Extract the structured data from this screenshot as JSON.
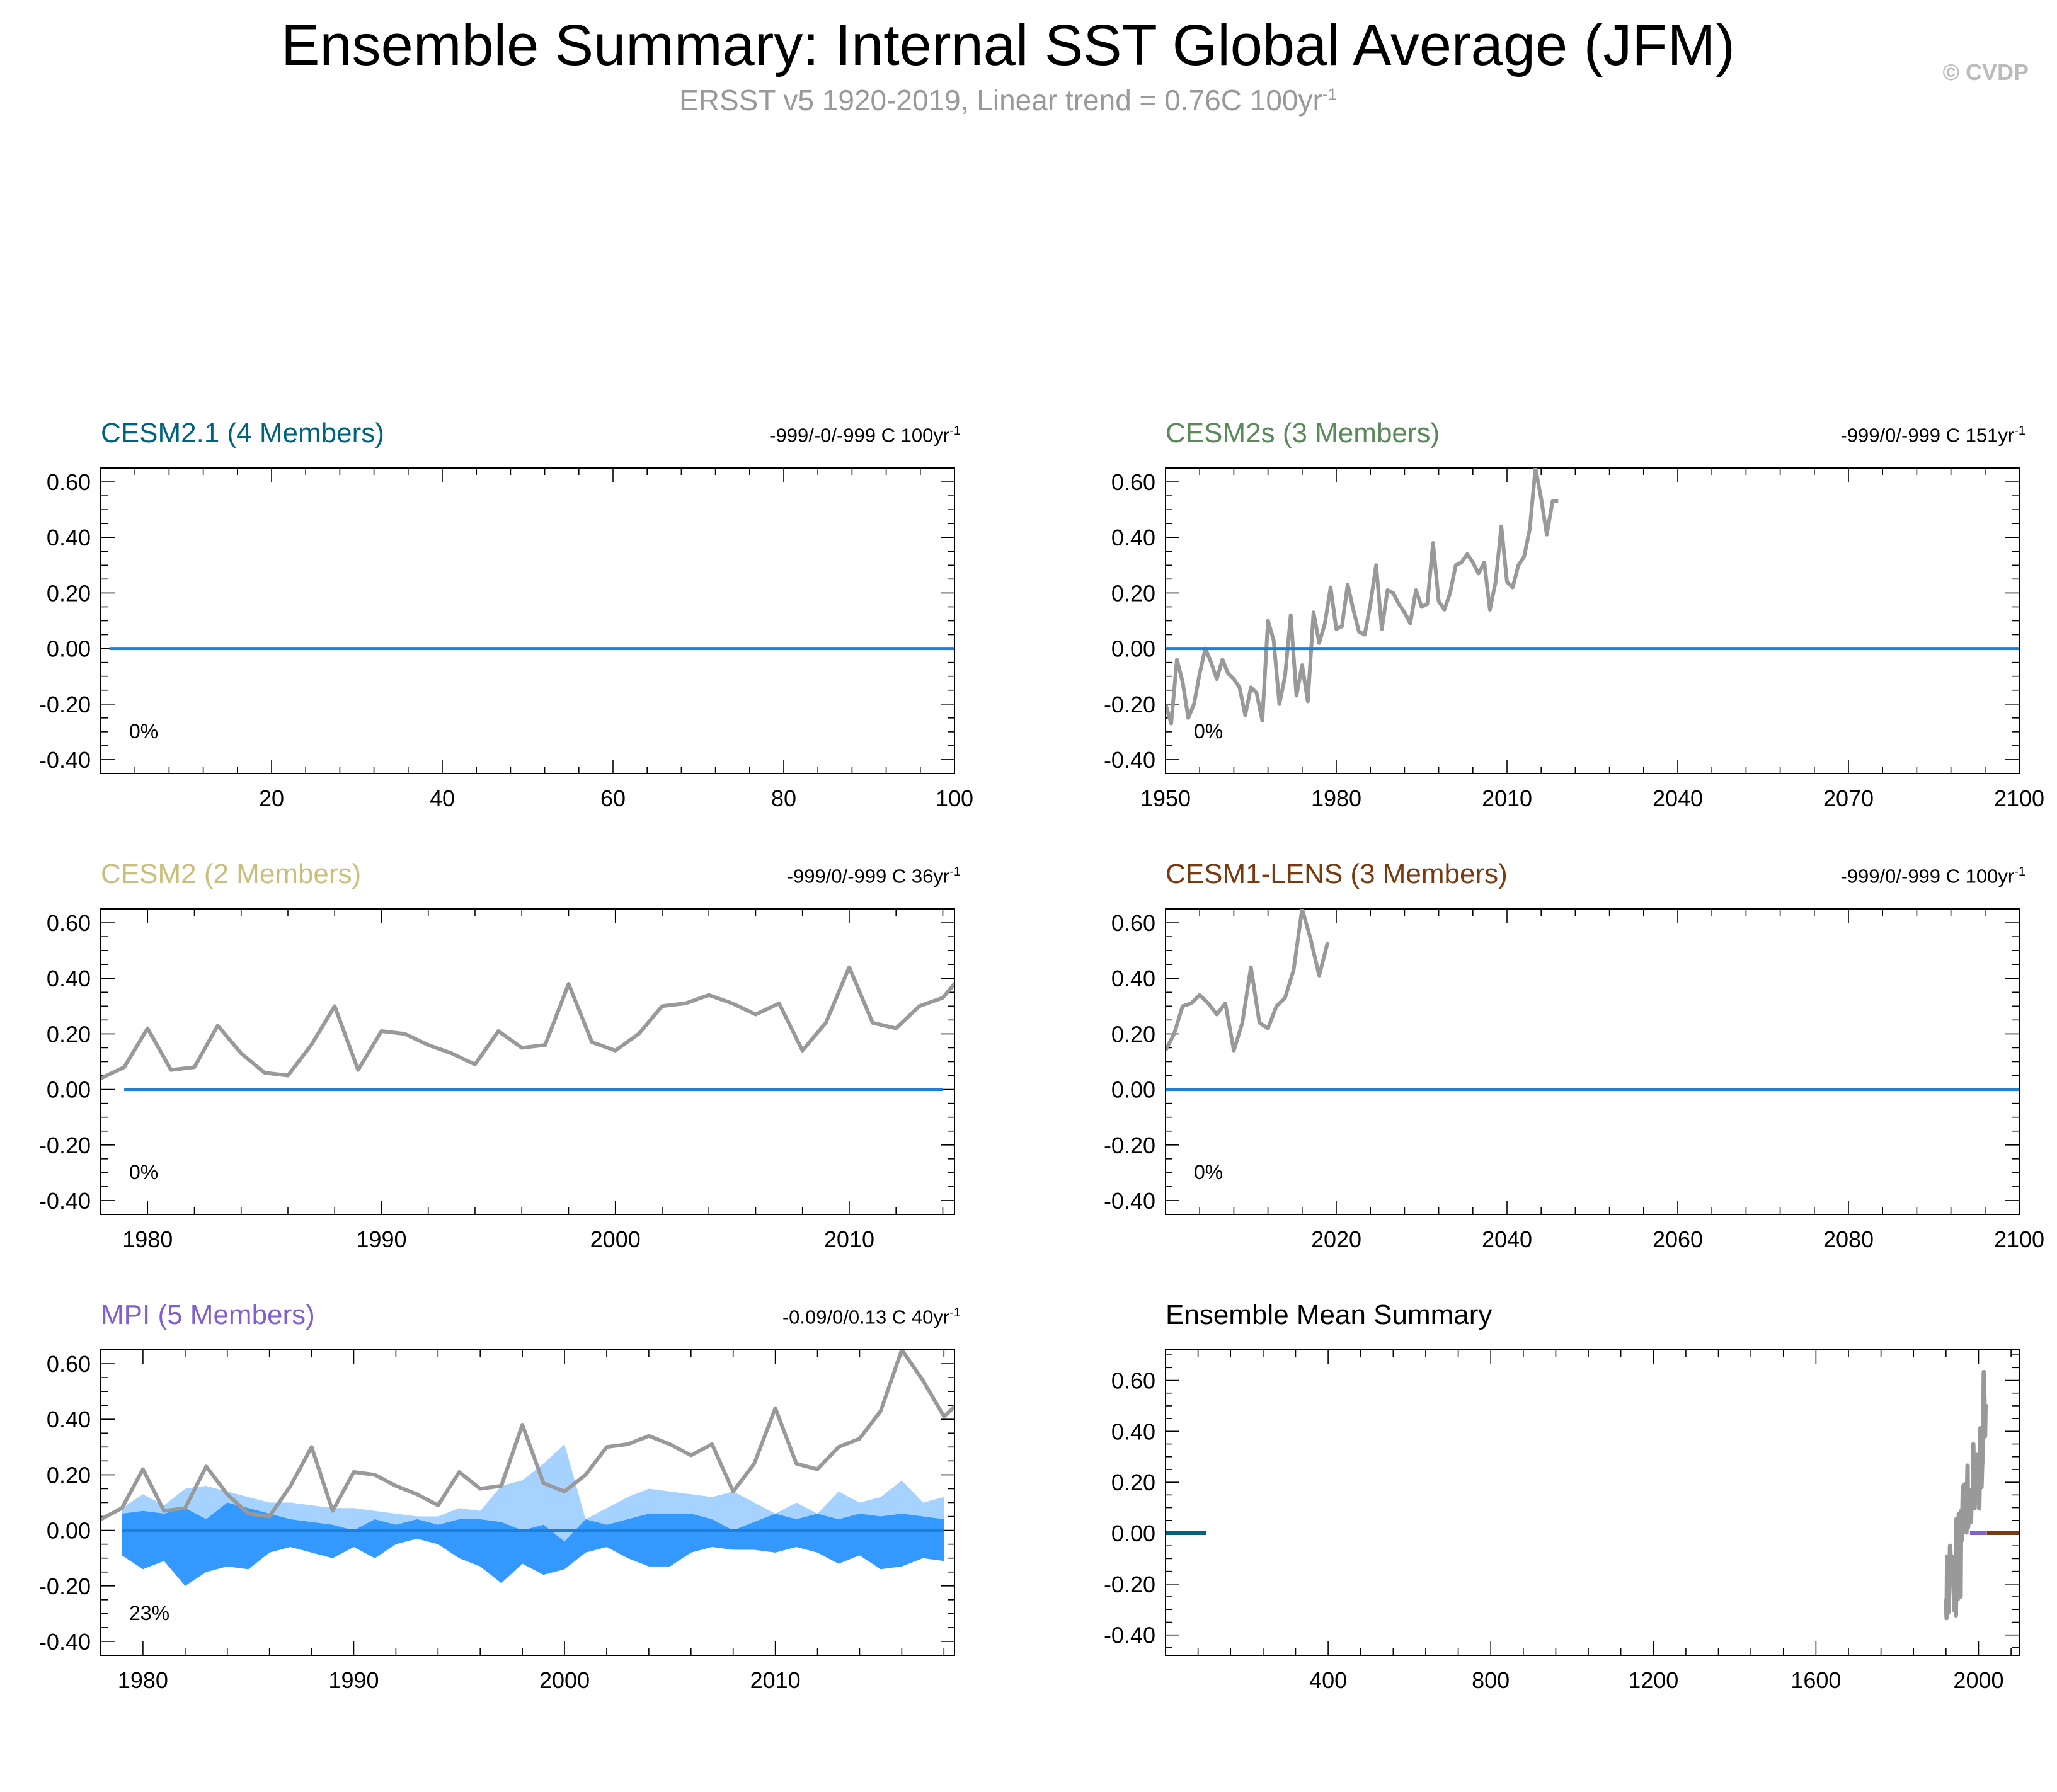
{
  "page": {
    "title": "Ensemble Summary: Internal SST Global Average (JFM)",
    "subtitle_main": "ERSST v5 1920-2019, Linear trend = 0.76C 100yr",
    "subtitle_sup": "-1",
    "copyright": "© CVDP"
  },
  "colors": {
    "obs_line": "#999999",
    "ens_mean_line": "#1f7fd6",
    "band_outer": "#a6d2ff",
    "band_inner": "#3399ff",
    "cesm21": "#00627f",
    "cesm2s": "#5a8a5a",
    "cesm2": "#c8c07a",
    "cesm1lens": "#7a3a10",
    "mpi": "#8060d0"
  },
  "panels": [
    {
      "id": "cesm21",
      "title": "CESM2.1 (4 Members)",
      "title_color": "#00627f",
      "trend_text": "-999/-0/-999 C 100yr",
      "trend_sup": "-1",
      "percent": "0%"
    },
    {
      "id": "cesm2s",
      "title": "CESM2s (3 Members)",
      "title_color": "#5a8a5a",
      "trend_text": "-999/0/-999 C 151yr",
      "trend_sup": "-1",
      "percent": "0%"
    },
    {
      "id": "cesm2",
      "title": "CESM2 (2 Members)",
      "title_color": "#c8c07a",
      "trend_text": "-999/0/-999 C 36yr",
      "trend_sup": "-1",
      "percent": "0%"
    },
    {
      "id": "cesm1lens",
      "title": "CESM1-LENS (3 Members)",
      "title_color": "#7a3a10",
      "trend_text": "-999/0/-999 C 100yr",
      "trend_sup": "-1",
      "percent": "0%"
    },
    {
      "id": "mpi",
      "title": "MPI (5 Members)",
      "title_color": "#8060d0",
      "trend_text": "-0.09/0/0.13 C 40yr",
      "trend_sup": "-1",
      "percent": "23%"
    },
    {
      "id": "ensmean",
      "title": "Ensemble Mean Summary",
      "title_color": "#000000",
      "trend_text": "",
      "trend_sup": "",
      "percent": ""
    }
  ],
  "chart_data": [
    {
      "id": "cesm21",
      "type": "line",
      "title": "CESM2.1 (4 Members)",
      "xlim": [
        0,
        100
      ],
      "ylim": [
        -0.45,
        0.65
      ],
      "xticks": [
        20,
        40,
        60,
        80,
        100
      ],
      "yticks": [
        -0.4,
        -0.2,
        0.0,
        0.2,
        0.4,
        0.6
      ],
      "series": [
        {
          "role": "ensemble_mean",
          "x": [
            1,
            100
          ],
          "y": [
            0,
            0
          ]
        }
      ]
    },
    {
      "id": "cesm2s",
      "type": "line",
      "title": "CESM2s (3 Members)",
      "xlim": [
        1950,
        2100
      ],
      "ylim": [
        -0.45,
        0.65
      ],
      "xticks": [
        1950,
        1980,
        2010,
        2040,
        2070,
        2100
      ],
      "yticks": [
        -0.4,
        -0.2,
        0.0,
        0.2,
        0.4,
        0.6
      ],
      "series": [
        {
          "role": "observations",
          "x": [
            1950,
            1951,
            1952,
            1953,
            1954,
            1955,
            1956,
            1957,
            1958,
            1959,
            1960,
            1961,
            1962,
            1963,
            1964,
            1965,
            1966,
            1967,
            1968,
            1969,
            1970,
            1971,
            1972,
            1973,
            1974,
            1975,
            1976,
            1977,
            1978,
            1979,
            1980,
            1981,
            1982,
            1983,
            1984,
            1985,
            1986,
            1987,
            1988,
            1989,
            1990,
            1991,
            1992,
            1993,
            1994,
            1995,
            1996,
            1997,
            1998,
            1999,
            2000,
            2001,
            2002,
            2003,
            2004,
            2005,
            2006,
            2007,
            2008,
            2009,
            2010,
            2011,
            2012,
            2013,
            2014,
            2015,
            2016,
            2017,
            2018,
            2019
          ],
          "y": [
            -0.2,
            -0.27,
            -0.04,
            -0.12,
            -0.25,
            -0.2,
            -0.09,
            0.0,
            -0.05,
            -0.11,
            -0.04,
            -0.09,
            -0.11,
            -0.14,
            -0.24,
            -0.14,
            -0.16,
            -0.26,
            0.1,
            0.03,
            -0.2,
            -0.1,
            0.12,
            -0.17,
            -0.06,
            -0.19,
            0.13,
            0.02,
            0.09,
            0.22,
            0.07,
            0.08,
            0.23,
            0.14,
            0.06,
            0.05,
            0.16,
            0.3,
            0.07,
            0.21,
            0.2,
            0.16,
            0.13,
            0.09,
            0.21,
            0.15,
            0.16,
            0.38,
            0.17,
            0.14,
            0.2,
            0.3,
            0.31,
            0.34,
            0.31,
            0.27,
            0.31,
            0.14,
            0.24,
            0.44,
            0.24,
            0.22,
            0.3,
            0.33,
            0.43,
            0.65,
            0.54,
            0.41,
            0.53,
            0.53
          ]
        },
        {
          "role": "ensemble_mean",
          "x": [
            1950,
            2100
          ],
          "y": [
            0,
            0
          ]
        }
      ]
    },
    {
      "id": "cesm2",
      "type": "line",
      "title": "CESM2 (2 Members)",
      "xlim": [
        1978,
        2014.5
      ],
      "ylim": [
        -0.45,
        0.65
      ],
      "xticks": [
        1980,
        1990,
        2000,
        2010
      ],
      "yticks": [
        -0.4,
        -0.2,
        0.0,
        0.2,
        0.4,
        0.6
      ],
      "series": [
        {
          "role": "observations",
          "x": [
            1978,
            1979,
            1980,
            1981,
            1982,
            1983,
            1984,
            1985,
            1986,
            1987,
            1988,
            1989,
            1990,
            1991,
            1992,
            1993,
            1994,
            1995,
            1996,
            1997,
            1998,
            1999,
            2000,
            2001,
            2002,
            2003,
            2004,
            2005,
            2006,
            2007,
            2008,
            2009,
            2010,
            2011,
            2012,
            2013,
            2014,
            2015
          ],
          "y": [
            0.04,
            0.08,
            0.22,
            0.07,
            0.08,
            0.23,
            0.13,
            0.06,
            0.05,
            0.16,
            0.3,
            0.07,
            0.21,
            0.2,
            0.16,
            0.13,
            0.09,
            0.21,
            0.15,
            0.16,
            0.38,
            0.17,
            0.14,
            0.2,
            0.3,
            0.31,
            0.34,
            0.31,
            0.27,
            0.31,
            0.14,
            0.24,
            0.44,
            0.24,
            0.22,
            0.3,
            0.33,
            0.43
          ]
        },
        {
          "role": "ensemble_mean",
          "x": [
            1979,
            2014
          ],
          "y": [
            0,
            0
          ]
        }
      ]
    },
    {
      "id": "cesm1lens",
      "type": "line",
      "title": "CESM1-LENS (3 Members)",
      "xlim": [
        2000,
        2100
      ],
      "ylim": [
        -0.45,
        0.65
      ],
      "xticks": [
        2020,
        2040,
        2060,
        2080,
        2100
      ],
      "yticks": [
        -0.4,
        -0.2,
        0.0,
        0.2,
        0.4,
        0.6
      ],
      "series": [
        {
          "role": "observations",
          "x": [
            2000,
            2001,
            2002,
            2003,
            2004,
            2005,
            2006,
            2007,
            2008,
            2009,
            2010,
            2011,
            2012,
            2013,
            2014,
            2015,
            2016,
            2017,
            2018,
            2019
          ],
          "y": [
            0.14,
            0.2,
            0.3,
            0.31,
            0.34,
            0.31,
            0.27,
            0.31,
            0.14,
            0.24,
            0.44,
            0.24,
            0.22,
            0.3,
            0.33,
            0.43,
            0.65,
            0.54,
            0.41,
            0.53
          ]
        },
        {
          "role": "ensemble_mean",
          "x": [
            2000,
            2100
          ],
          "y": [
            0,
            0
          ]
        }
      ]
    },
    {
      "id": "mpi",
      "type": "area",
      "title": "MPI (5 Members)",
      "xlim": [
        1978,
        2018.5
      ],
      "ylim": [
        -0.45,
        0.65
      ],
      "xticks": [
        1980,
        1990,
        2000,
        2010
      ],
      "yticks": [
        -0.4,
        -0.2,
        0.0,
        0.2,
        0.4,
        0.6
      ],
      "band_x": [
        1979,
        1980,
        1981,
        1982,
        1983,
        1984,
        1985,
        1986,
        1987,
        1988,
        1989,
        1990,
        1991,
        1992,
        1993,
        1994,
        1995,
        1996,
        1997,
        1998,
        1999,
        2000,
        2001,
        2002,
        2003,
        2004,
        2005,
        2006,
        2007,
        2008,
        2009,
        2010,
        2011,
        2012,
        2013,
        2014,
        2015,
        2016,
        2017,
        2018
      ],
      "band_outer_upper": [
        0.08,
        0.13,
        0.09,
        0.15,
        0.16,
        0.14,
        0.12,
        0.1,
        0.1,
        0.09,
        0.08,
        0.08,
        0.07,
        0.06,
        0.05,
        0.05,
        0.08,
        0.07,
        0.16,
        0.18,
        0.24,
        0.31,
        0.04,
        0.08,
        0.12,
        0.15,
        0.14,
        0.13,
        0.12,
        0.14,
        0.1,
        0.06,
        0.1,
        0.06,
        0.14,
        0.1,
        0.12,
        0.18,
        0.1,
        0.12
      ],
      "band_inner_upper": [
        0.06,
        0.07,
        0.06,
        0.08,
        0.04,
        0.1,
        0.08,
        0.06,
        0.04,
        0.03,
        0.02,
        0.0,
        0.04,
        0.02,
        0.04,
        0.02,
        0.04,
        0.04,
        0.03,
        0.0,
        0.02,
        -0.04,
        0.04,
        0.02,
        0.04,
        0.06,
        0.06,
        0.06,
        0.04,
        0.0,
        0.03,
        0.06,
        0.04,
        0.06,
        0.04,
        0.06,
        0.05,
        0.06,
        0.05,
        0.04
      ],
      "band_inner_lower": [
        -0.09,
        -0.14,
        -0.11,
        -0.2,
        -0.15,
        -0.13,
        -0.14,
        -0.08,
        -0.06,
        -0.08,
        -0.1,
        -0.06,
        -0.1,
        -0.05,
        -0.03,
        -0.05,
        -0.1,
        -0.13,
        -0.19,
        -0.12,
        -0.16,
        -0.14,
        -0.08,
        -0.06,
        -0.1,
        -0.13,
        -0.13,
        -0.08,
        -0.06,
        -0.07,
        -0.07,
        -0.08,
        -0.06,
        -0.08,
        -0.12,
        -0.09,
        -0.14,
        -0.13,
        -0.1,
        -0.11
      ],
      "series": [
        {
          "role": "observations",
          "x": [
            1978,
            1979,
            1980,
            1981,
            1982,
            1983,
            1984,
            1985,
            1986,
            1987,
            1988,
            1989,
            1990,
            1991,
            1992,
            1993,
            1994,
            1995,
            1996,
            1997,
            1998,
            1999,
            2000,
            2001,
            2002,
            2003,
            2004,
            2005,
            2006,
            2007,
            2008,
            2009,
            2010,
            2011,
            2012,
            2013,
            2014,
            2015,
            2016,
            2017,
            2018,
            2019
          ],
          "y": [
            0.04,
            0.08,
            0.22,
            0.07,
            0.08,
            0.23,
            0.13,
            0.06,
            0.05,
            0.16,
            0.3,
            0.07,
            0.21,
            0.2,
            0.16,
            0.13,
            0.09,
            0.21,
            0.15,
            0.16,
            0.38,
            0.17,
            0.14,
            0.2,
            0.3,
            0.31,
            0.34,
            0.31,
            0.27,
            0.31,
            0.14,
            0.24,
            0.44,
            0.24,
            0.22,
            0.3,
            0.33,
            0.43,
            0.65,
            0.54,
            0.41,
            0.48
          ]
        },
        {
          "role": "ensemble_mean",
          "x": [
            1979,
            2018
          ],
          "y": [
            0,
            0
          ]
        }
      ]
    },
    {
      "id": "ensmean",
      "type": "line",
      "title": "Ensemble Mean Summary",
      "xlim": [
        0,
        2100
      ],
      "ylim": [
        -0.48,
        0.72
      ],
      "xticks": [
        400,
        800,
        1200,
        1600,
        2000
      ],
      "yticks": [
        -0.4,
        -0.2,
        0.0,
        0.2,
        0.4,
        0.6
      ],
      "series": [
        {
          "role": "cesm21_mean",
          "color": "#00627f",
          "x": [
            1,
            100
          ],
          "y": [
            0,
            0
          ]
        },
        {
          "role": "mpi_mean",
          "color": "#8060d0",
          "x": [
            1979,
            2018
          ],
          "y": [
            0,
            0
          ]
        },
        {
          "role": "cesm1lens_mean",
          "color": "#7a3a10",
          "x": [
            2020,
            2100
          ],
          "y": [
            0,
            0
          ]
        }
      ]
    }
  ]
}
